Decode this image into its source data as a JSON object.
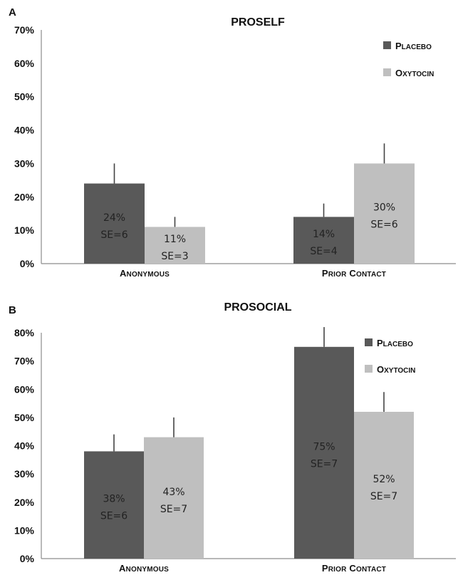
{
  "chart_data": [
    {
      "panel": "A",
      "type": "bar",
      "title": "PROSELF",
      "categories": [
        "Anonymous",
        "Prior Contact"
      ],
      "series": [
        {
          "name": "Placebo",
          "values": [
            24,
            14
          ],
          "se": [
            6,
            4
          ],
          "labels": [
            [
              "24%",
              "SE=6"
            ],
            [
              "14%",
              "SE=4"
            ]
          ],
          "color": "#595959"
        },
        {
          "name": "Oxytocin",
          "values": [
            11,
            30
          ],
          "se": [
            3,
            6
          ],
          "labels": [
            [
              "11%",
              "SE=3"
            ],
            [
              "30%",
              "SE=6"
            ]
          ],
          "color": "#bfbfbf"
        }
      ],
      "yticks": [
        "0%",
        "10%",
        "20%",
        "30%",
        "40%",
        "50%",
        "60%",
        "70%"
      ],
      "ylim": [
        0,
        70
      ],
      "legend": "top-right"
    },
    {
      "panel": "B",
      "type": "bar",
      "title": "PROSOCIAL",
      "categories": [
        "Anonymous",
        "Prior Contact"
      ],
      "series": [
        {
          "name": "Placebo",
          "values": [
            38,
            75
          ],
          "se": [
            6,
            7
          ],
          "labels": [
            [
              "38%",
              "SE=6"
            ],
            [
              "75%",
              "SE=7"
            ]
          ],
          "color": "#595959"
        },
        {
          "name": "Oxytocin",
          "values": [
            43,
            52
          ],
          "se": [
            7,
            7
          ],
          "labels": [
            [
              "43%",
              "SE=7"
            ],
            [
              "52%",
              "SE=7"
            ]
          ],
          "color": "#bfbfbf"
        }
      ],
      "yticks": [
        "0%",
        "10%",
        "20%",
        "30%",
        "40%",
        "50%",
        "60%",
        "70%",
        "80%"
      ],
      "ylim": [
        0,
        80
      ],
      "legend": "top-right"
    }
  ]
}
